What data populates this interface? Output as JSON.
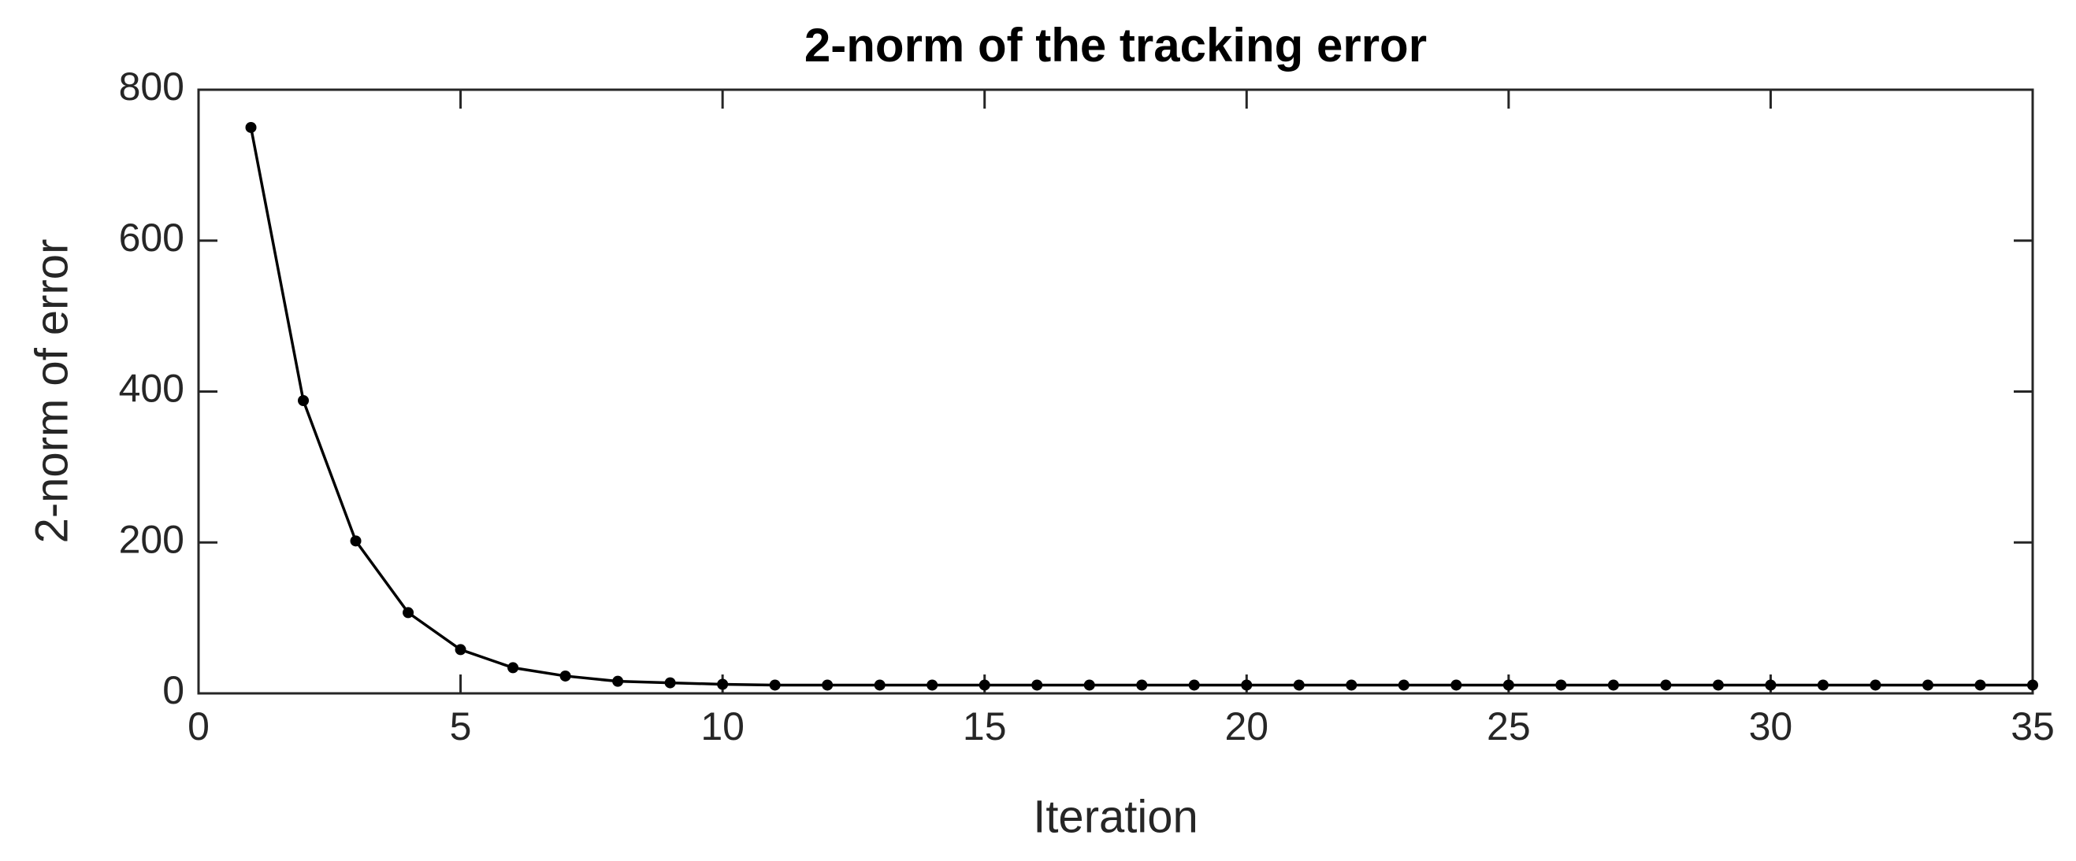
{
  "chart_data": {
    "type": "line",
    "title": "2-norm of the tracking error",
    "x_label": "Iteration",
    "y_label": "2-norm of error",
    "x": [
      1,
      2,
      3,
      4,
      5,
      6,
      7,
      8,
      9,
      10,
      11,
      12,
      13,
      14,
      15,
      16,
      17,
      18,
      19,
      20,
      21,
      22,
      23,
      24,
      25,
      26,
      27,
      28,
      29,
      30,
      31,
      32,
      33,
      34,
      35
    ],
    "series": [
      {
        "color": "#000000",
        "values": [
          750,
          388,
          202,
          107,
          58,
          34,
          23,
          16,
          14,
          12,
          11,
          11,
          11,
          11,
          11,
          11,
          11,
          11,
          11,
          11,
          11,
          11,
          11,
          11,
          11,
          11,
          11,
          11,
          11,
          11,
          11,
          11,
          11,
          11,
          11
        ]
      }
    ],
    "xlim": [
      0,
      35
    ],
    "xticks": [
      0,
      5,
      10,
      15,
      20,
      25,
      30,
      35
    ],
    "ylim": [
      0,
      800
    ],
    "yticks": [
      0,
      200,
      400,
      600,
      800
    ],
    "grid": false,
    "box": true
  }
}
